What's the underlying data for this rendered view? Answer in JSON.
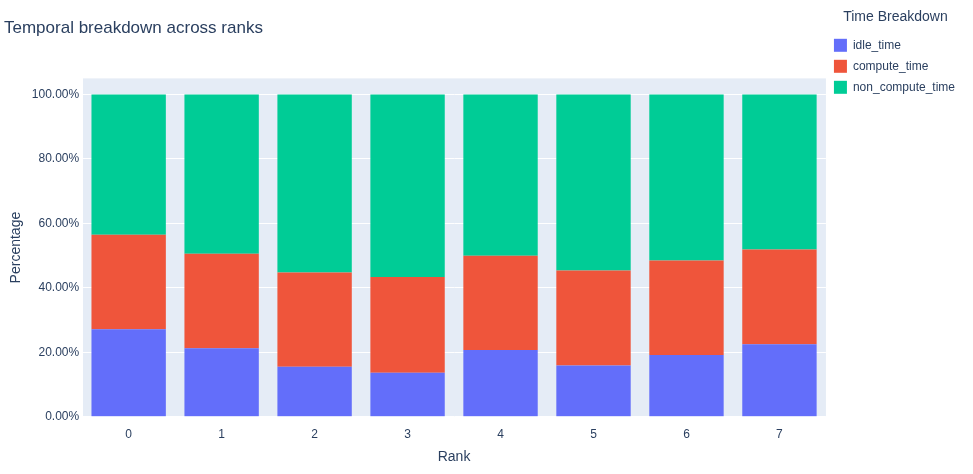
{
  "chart_data": {
    "type": "bar",
    "title": "Temporal breakdown across ranks",
    "x_label": "Rank",
    "y_label": "Percentage",
    "legend_title": "Time Breakdown",
    "categories": [
      "0",
      "1",
      "2",
      "3",
      "4",
      "5",
      "6",
      "7"
    ],
    "series": [
      {
        "name": "idle_time",
        "color": "#636efa",
        "values": [
          27.2,
          21.3,
          15.5,
          13.7,
          20.7,
          15.9,
          19.2,
          22.5
        ]
      },
      {
        "name": "compute_time",
        "color": "#ef553b",
        "values": [
          29.3,
          29.3,
          29.3,
          29.7,
          29.3,
          29.5,
          29.3,
          29.4
        ]
      },
      {
        "name": "non_compute_time",
        "color": "#00cc96",
        "values": [
          43.5,
          49.4,
          55.2,
          56.6,
          50.0,
          54.6,
          51.5,
          48.1
        ]
      }
    ],
    "stacked": true,
    "ylim": [
      0,
      105
    ],
    "yticks": [
      {
        "value": 0,
        "label": "0.00%"
      },
      {
        "value": 20,
        "label": "20.00%"
      },
      {
        "value": 40,
        "label": "40.00%"
      },
      {
        "value": 60,
        "label": "60.00%"
      },
      {
        "value": 80,
        "label": "80.00%"
      },
      {
        "value": 100,
        "label": "100.00%"
      }
    ],
    "grid": true,
    "legend": "right"
  }
}
